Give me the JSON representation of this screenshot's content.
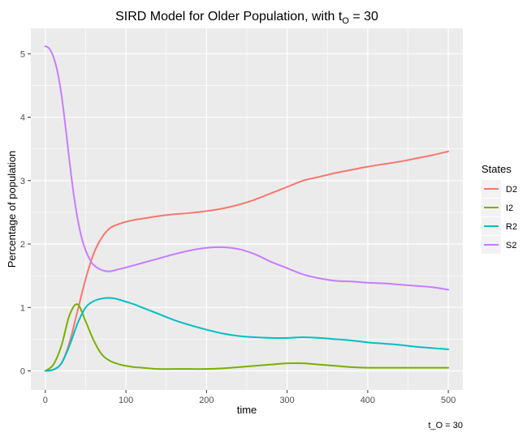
{
  "chart_data": {
    "type": "line",
    "title": {
      "main": "SIRD Model for Older Population, with t",
      "subscript": "O",
      "suffix": " = 30"
    },
    "xlabel": "time",
    "ylabel": "Percentage of population",
    "caption": "t_O = 30",
    "xlim": [
      -18,
      518
    ],
    "ylim": [
      -0.3,
      5.4
    ],
    "xticks": [
      0,
      100,
      200,
      300,
      400,
      500
    ],
    "yticks": [
      0,
      1,
      2,
      3,
      4,
      5
    ],
    "xtick_labels": [
      "0",
      "100",
      "200",
      "300",
      "400",
      "500"
    ],
    "ytick_labels": [
      "0",
      "1",
      "2",
      "3",
      "4",
      "5"
    ],
    "grid": true,
    "legend": {
      "title": "States",
      "position": "right"
    },
    "series": [
      {
        "name": "D2",
        "color": "#F8766D",
        "x": [
          0,
          10,
          20,
          30,
          40,
          50,
          60,
          70,
          80,
          90,
          100,
          110,
          120,
          140,
          160,
          180,
          200,
          220,
          240,
          260,
          280,
          300,
          320,
          340,
          360,
          380,
          400,
          420,
          440,
          460,
          480,
          500
        ],
        "y": [
          0,
          0.02,
          0.12,
          0.45,
          0.95,
          1.45,
          1.85,
          2.1,
          2.25,
          2.31,
          2.35,
          2.38,
          2.4,
          2.44,
          2.47,
          2.49,
          2.52,
          2.56,
          2.62,
          2.7,
          2.8,
          2.9,
          3.0,
          3.06,
          3.12,
          3.17,
          3.22,
          3.26,
          3.3,
          3.35,
          3.4,
          3.46
        ]
      },
      {
        "name": "I2",
        "color": "#7CAE00",
        "x": [
          0,
          10,
          20,
          30,
          40,
          50,
          60,
          70,
          80,
          90,
          100,
          110,
          120,
          140,
          160,
          180,
          200,
          220,
          240,
          260,
          280,
          300,
          320,
          340,
          360,
          380,
          400,
          420,
          440,
          460,
          480,
          500
        ],
        "y": [
          0,
          0.1,
          0.4,
          0.88,
          1.05,
          0.78,
          0.48,
          0.26,
          0.16,
          0.11,
          0.08,
          0.06,
          0.05,
          0.03,
          0.03,
          0.03,
          0.03,
          0.04,
          0.06,
          0.08,
          0.1,
          0.12,
          0.12,
          0.1,
          0.08,
          0.06,
          0.05,
          0.05,
          0.05,
          0.05,
          0.05,
          0.05
        ]
      },
      {
        "name": "R2",
        "color": "#00BFC4",
        "x": [
          0,
          10,
          20,
          30,
          40,
          50,
          60,
          70,
          80,
          90,
          100,
          110,
          120,
          140,
          160,
          180,
          200,
          220,
          240,
          260,
          280,
          300,
          320,
          340,
          360,
          380,
          400,
          420,
          440,
          460,
          480,
          500
        ],
        "y": [
          0,
          0.02,
          0.12,
          0.4,
          0.75,
          1.0,
          1.1,
          1.14,
          1.15,
          1.13,
          1.09,
          1.05,
          1.0,
          0.9,
          0.8,
          0.72,
          0.65,
          0.59,
          0.55,
          0.53,
          0.52,
          0.52,
          0.53,
          0.52,
          0.5,
          0.48,
          0.45,
          0.43,
          0.41,
          0.38,
          0.36,
          0.34
        ]
      },
      {
        "name": "S2",
        "color": "#C77CFF",
        "x": [
          0,
          5,
          10,
          15,
          20,
          25,
          30,
          35,
          40,
          45,
          50,
          55,
          60,
          70,
          80,
          90,
          100,
          120,
          140,
          160,
          180,
          200,
          220,
          240,
          260,
          280,
          300,
          320,
          340,
          360,
          380,
          400,
          420,
          440,
          460,
          480,
          500
        ],
        "y": [
          5.12,
          5.08,
          4.95,
          4.72,
          4.35,
          3.85,
          3.3,
          2.8,
          2.4,
          2.1,
          1.9,
          1.76,
          1.67,
          1.59,
          1.57,
          1.6,
          1.63,
          1.7,
          1.77,
          1.84,
          1.9,
          1.94,
          1.95,
          1.92,
          1.84,
          1.72,
          1.62,
          1.52,
          1.46,
          1.42,
          1.41,
          1.39,
          1.38,
          1.36,
          1.34,
          1.32,
          1.28
        ]
      }
    ]
  }
}
